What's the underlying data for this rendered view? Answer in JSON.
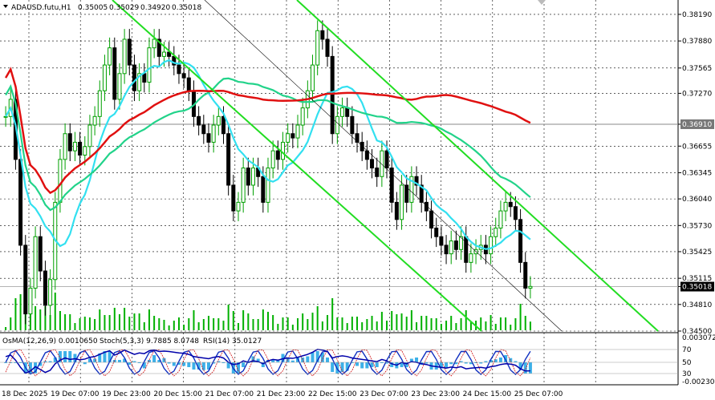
{
  "header": {
    "symbol": "ADAUSD.futu,H1",
    "open": "0.35005",
    "high": "0.35029",
    "low": "0.34920",
    "close": "0.35018"
  },
  "indicators_label": {
    "osma": "OsMA(12,26,9) 0.0010650",
    "stoch": "Stoch(5,3,3) 9.7885 8.0748",
    "rsi": "RSI(14) 35.0127"
  },
  "colors": {
    "bull": "#00a000",
    "bear": "#000000",
    "ma_short": "#32e0f0",
    "ma_mid": "#22d38a",
    "ma_long": "#e01010",
    "channel": "#22dd22",
    "osma": "#3cb0e8",
    "stoch_main": "#1030c0",
    "stoch_signal": "#d01010",
    "rsi": "#0000aa"
  },
  "chart_data": {
    "type": "candlestick",
    "price_axis": [
      "0.38190",
      "0.37880",
      "0.37565",
      "0.37270",
      "0.36910",
      "0.36655",
      "0.36345",
      "0.36040",
      "0.35730",
      "0.35425",
      "0.35115",
      "0.35018",
      "0.34810",
      "0.34500"
    ],
    "ylim": [
      0.345,
      0.3832
    ],
    "current_price": "0.35018",
    "marked_level": "0.36910",
    "time_labels": [
      "18 Dec 2025",
      "19 Dec 07:00",
      "19 Dec 23:00",
      "20 Dec 15:00",
      "21 Dec 07:00",
      "21 Dec 23:00",
      "22 Dec 15:00",
      "23 Dec 07:00",
      "23 Dec 23:00",
      "24 Dec 15:00",
      "25 Dec 07:00"
    ],
    "closes": [
      0.37,
      0.372,
      0.365,
      0.355,
      0.347,
      0.35,
      0.356,
      0.352,
      0.348,
      0.351,
      0.36,
      0.365,
      0.368,
      0.366,
      0.367,
      0.3655,
      0.3665,
      0.369,
      0.37,
      0.373,
      0.376,
      0.378,
      0.372,
      0.375,
      0.379,
      0.376,
      0.373,
      0.375,
      0.374,
      0.378,
      0.379,
      0.377,
      0.3775,
      0.377,
      0.376,
      0.375,
      0.3745,
      0.373,
      0.37,
      0.369,
      0.368,
      0.367,
      0.369,
      0.37,
      0.368,
      0.362,
      0.359,
      0.36,
      0.364,
      0.362,
      0.364,
      0.363,
      0.36,
      0.364,
      0.366,
      0.365,
      0.367,
      0.368,
      0.3675,
      0.369,
      0.371,
      0.373,
      0.376,
      0.38,
      0.379,
      0.377,
      0.368,
      0.37,
      0.371,
      0.37,
      0.368,
      0.367,
      0.366,
      0.365,
      0.364,
      0.363,
      0.366,
      0.364,
      0.36,
      0.358,
      0.362,
      0.36,
      0.363,
      0.362,
      0.36,
      0.359,
      0.357,
      0.356,
      0.355,
      0.354,
      0.3555,
      0.3545,
      0.356,
      0.353,
      0.354,
      0.3545,
      0.355,
      0.354,
      0.356,
      0.357,
      0.359,
      0.36,
      0.3595,
      0.358,
      0.353,
      0.35,
      0.3502
    ],
    "ma_short_label": "MA fast (cyan)",
    "ma_mid_label": "MA mid (green)",
    "ma_long_label": "MA slow (red)",
    "indicator_axis": [
      "0.0030728",
      "70",
      "50",
      "30",
      "-0.002307"
    ]
  }
}
